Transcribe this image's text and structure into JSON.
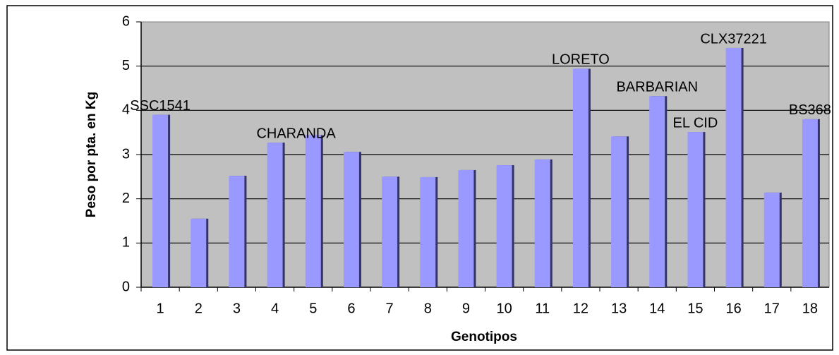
{
  "chart_data": {
    "type": "bar",
    "xlabel": "Genotipos",
    "ylabel": "Peso por pta. en Kg",
    "categories": [
      "1",
      "2",
      "3",
      "4",
      "5",
      "6",
      "7",
      "8",
      "9",
      "10",
      "11",
      "12",
      "13",
      "14",
      "15",
      "16",
      "17",
      "18"
    ],
    "values": [
      3.9,
      1.55,
      2.52,
      3.27,
      3.44,
      3.06,
      2.5,
      2.49,
      2.65,
      2.76,
      2.89,
      4.94,
      3.41,
      4.32,
      3.51,
      5.41,
      2.14,
      3.8
    ],
    "color": "#9999ff",
    "ylim": [
      0,
      6
    ],
    "yticks": [
      0,
      1,
      2,
      3,
      4,
      5,
      6
    ],
    "grid": true,
    "annotations": [
      {
        "text": "SSC1541",
        "category": "1"
      },
      {
        "text": "CHARANDA",
        "category": "4"
      },
      {
        "text": "LORETO",
        "category": "12"
      },
      {
        "text": "BARBARIAN",
        "category": "14"
      },
      {
        "text": "EL CID",
        "category": "15"
      },
      {
        "text": "CLX37221",
        "category": "16"
      },
      {
        "text": "BS368",
        "category": "18"
      }
    ]
  }
}
